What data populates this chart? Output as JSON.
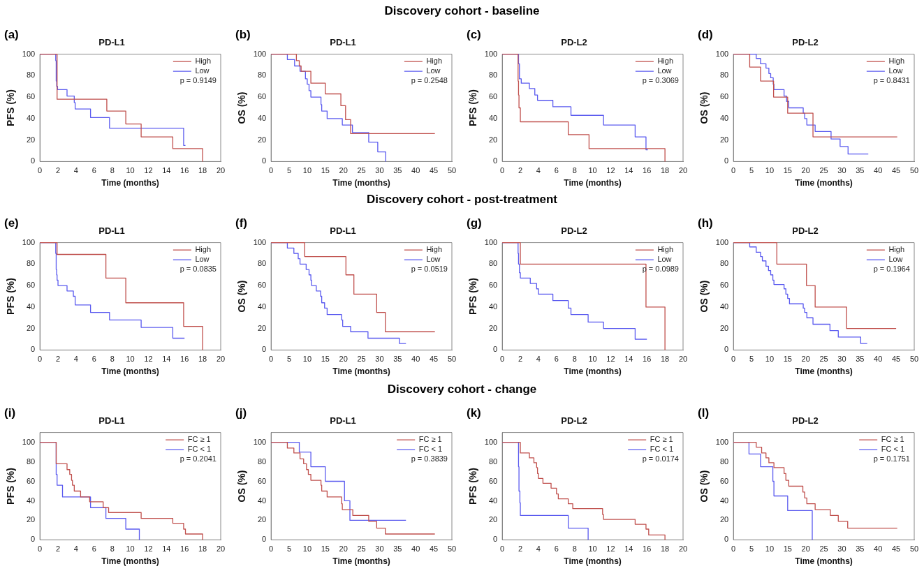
{
  "chart_data": [
    {
      "type": "step",
      "title": "PD-L1",
      "xlabel": "Time (months)",
      "ylabel": "PFS (%)",
      "annotations": [
        "Discovery cohort - baseline",
        "(a)",
        "p = 0.9149"
      ],
      "legend": "top right",
      "grid": false,
      "xlim": [
        0,
        20
      ],
      "xticks": [
        0,
        2,
        4,
        6,
        8,
        10,
        12,
        14,
        16,
        18,
        20
      ],
      "ylim": [
        0,
        100
      ],
      "yticks": [
        0,
        20,
        40,
        60,
        80,
        100
      ],
      "series": [
        {
          "name": "High",
          "color": "#c0504d",
          "x": [
            0,
            1.9,
            7.4,
            9.5,
            11.2,
            14.7,
            18
          ],
          "values": [
            100,
            58,
            47,
            35,
            23,
            12,
            0
          ]
        },
        {
          "name": "Low",
          "color": "#5b5bef",
          "x": [
            0,
            1.75,
            1.8,
            1.85,
            1.95,
            3,
            3.8,
            3.9,
            5.6,
            7.7,
            15.9,
            16.1
          ],
          "values": [
            100,
            94,
            75,
            70,
            67,
            61,
            55,
            49,
            41,
            31,
            15,
            15
          ]
        }
      ]
    },
    {
      "type": "step",
      "title": "PD-L1",
      "xlabel": "Time (months)",
      "ylabel": "OS (%)",
      "annotations": [
        "(b)",
        "p = 0.2548"
      ],
      "legend": "top right",
      "grid": false,
      "xlim": [
        0,
        50
      ],
      "xticks": [
        0,
        5,
        10,
        15,
        20,
        25,
        30,
        35,
        40,
        45,
        50
      ],
      "ylim": [
        0,
        100
      ],
      "yticks": [
        0,
        20,
        40,
        60,
        80,
        100
      ],
      "series": [
        {
          "name": "High",
          "color": "#c0504d",
          "x": [
            0,
            7,
            7.8,
            8.3,
            11,
            15,
            19.3,
            20.6,
            22,
            45.3
          ],
          "values": [
            100,
            94,
            89,
            84,
            73,
            63,
            52,
            39,
            26,
            26
          ]
        },
        {
          "name": "Low",
          "color": "#5b5bef",
          "x": [
            0,
            4.5,
            6.5,
            8,
            9.5,
            10,
            10.5,
            11,
            13.8,
            14,
            15.5,
            19.7,
            22.5,
            27,
            29.5,
            31.7
          ],
          "values": [
            100,
            95,
            89,
            84,
            77,
            72,
            66,
            60,
            53,
            47,
            40,
            34,
            27,
            18,
            9,
            0
          ]
        }
      ]
    },
    {
      "type": "step",
      "title": "PD-L2",
      "xlabel": "Time (months)",
      "ylabel": "PFS (%)",
      "annotations": [
        "(c)",
        "p = 0.3069"
      ],
      "legend": "top right",
      "grid": false,
      "xlim": [
        0,
        20
      ],
      "xticks": [
        0,
        2,
        4,
        6,
        8,
        10,
        12,
        14,
        16,
        18,
        20
      ],
      "ylim": [
        0,
        100
      ],
      "yticks": [
        0,
        20,
        40,
        60,
        80,
        100
      ],
      "series": [
        {
          "name": "High",
          "color": "#c0504d",
          "x": [
            0,
            1.75,
            1.8,
            1.85,
            2,
            7.3,
            9.6,
            18
          ],
          "values": [
            100,
            75,
            62,
            50,
            37,
            25,
            12,
            0
          ]
        },
        {
          "name": "Low",
          "color": "#5b5bef",
          "x": [
            0,
            1.8,
            1.9,
            2.1,
            3,
            3.6,
            3.9,
            5.6,
            7.6,
            11.2,
            14.7,
            15.9,
            16.1
          ],
          "values": [
            100,
            91,
            77,
            73,
            68,
            62,
            57,
            51,
            43,
            34,
            23,
            11,
            11
          ]
        }
      ]
    },
    {
      "type": "step",
      "title": "PD-L2",
      "xlabel": "Time (months)",
      "ylabel": "OS (%)",
      "annotations": [
        "(d)",
        "p = 0.8431"
      ],
      "legend": "top right",
      "grid": false,
      "xlim": [
        0,
        50
      ],
      "xticks": [
        0,
        5,
        10,
        15,
        20,
        25,
        30,
        35,
        40,
        45,
        50
      ],
      "ylim": [
        0,
        100
      ],
      "yticks": [
        0,
        20,
        40,
        60,
        80,
        100
      ],
      "series": [
        {
          "name": "High",
          "color": "#c0504d",
          "x": [
            0,
            4.5,
            7.5,
            11.1,
            15,
            22,
            45.3
          ],
          "values": [
            100,
            88,
            75,
            60,
            45,
            23,
            23
          ]
        },
        {
          "name": "Low",
          "color": "#5b5bef",
          "x": [
            0,
            6.3,
            7.5,
            9,
            9.8,
            10.3,
            11,
            11.2,
            14,
            14.7,
            15.3,
            19.3,
            19.7,
            20.3,
            22.6,
            27,
            29.5,
            31.7,
            37.3
          ],
          "values": [
            100,
            96,
            91,
            87,
            82,
            78,
            72,
            67,
            61,
            56,
            50,
            45,
            40,
            34,
            28,
            21,
            14,
            7,
            7
          ]
        }
      ]
    },
    {
      "type": "step",
      "title": "PD-L1",
      "xlabel": "Time (months)",
      "ylabel": "PFS (%)",
      "annotations": [
        "Discovery cohort - post-treatment",
        "(e)",
        "p = 0.0835"
      ],
      "legend": "top right",
      "grid": false,
      "xlim": [
        0,
        20
      ],
      "xticks": [
        0,
        2,
        4,
        6,
        8,
        10,
        12,
        14,
        16,
        18,
        20
      ],
      "ylim": [
        0,
        100
      ],
      "yticks": [
        0,
        20,
        40,
        60,
        80,
        100
      ],
      "series": [
        {
          "name": "High",
          "color": "#c0504d",
          "x": [
            0,
            1.9,
            7.3,
            9.5,
            15.9,
            18
          ],
          "values": [
            100,
            89,
            67,
            44,
            22,
            0
          ]
        },
        {
          "name": "Low",
          "color": "#5b5bef",
          "x": [
            0,
            1.75,
            1.8,
            1.85,
            1.9,
            2,
            3,
            3.7,
            3.9,
            5.6,
            7.7,
            11.2,
            14.7,
            16
          ],
          "values": [
            100,
            90,
            75,
            70,
            65,
            60,
            55,
            50,
            42,
            35,
            28,
            21,
            11,
            11
          ]
        }
      ]
    },
    {
      "type": "step",
      "title": "PD-L1",
      "xlabel": "Time (months)",
      "ylabel": "OS (%)",
      "annotations": [
        "(f)",
        "p = 0.0519"
      ],
      "legend": "top right",
      "grid": false,
      "xlim": [
        0,
        50
      ],
      "xticks": [
        0,
        5,
        10,
        15,
        20,
        25,
        30,
        35,
        40,
        45,
        50
      ],
      "ylim": [
        0,
        100
      ],
      "yticks": [
        0,
        20,
        40,
        60,
        80,
        100
      ],
      "series": [
        {
          "name": "High",
          "color": "#c0504d",
          "x": [
            0,
            9.3,
            20.7,
            22.9,
            29.2,
            31.6,
            45.3
          ],
          "values": [
            100,
            87,
            70,
            52,
            35,
            17,
            17
          ]
        },
        {
          "name": "Low",
          "color": "#5b5bef",
          "x": [
            0,
            4.5,
            6.3,
            7.5,
            8,
            9.7,
            10.5,
            11,
            11.2,
            12.5,
            13.7,
            14,
            14.8,
            15.5,
            19.5,
            19.8,
            22,
            26.8,
            35.5,
            37.3
          ],
          "values": [
            100,
            95,
            90,
            85,
            80,
            75,
            70,
            65,
            60,
            55,
            50,
            44,
            39,
            33,
            28,
            22,
            17,
            11,
            6,
            6
          ]
        }
      ]
    },
    {
      "type": "step",
      "title": "PD-L2",
      "xlabel": "Time (months)",
      "ylabel": "PFS (%)",
      "annotations": [
        "(g)",
        "p = 0.0989"
      ],
      "legend": "top right",
      "grid": false,
      "xlim": [
        0,
        20
      ],
      "xticks": [
        0,
        2,
        4,
        6,
        8,
        10,
        12,
        14,
        16,
        18,
        20
      ],
      "ylim": [
        0,
        100
      ],
      "yticks": [
        0,
        20,
        40,
        60,
        80,
        100
      ],
      "series": [
        {
          "name": "High",
          "color": "#c0504d",
          "x": [
            0,
            2,
            15.9,
            18
          ],
          "values": [
            100,
            80,
            40,
            0
          ]
        },
        {
          "name": "Low",
          "color": "#5b5bef",
          "x": [
            0,
            1.75,
            1.8,
            1.9,
            2,
            3.1,
            3.8,
            4,
            5.6,
            7.3,
            7.6,
            9.5,
            11.2,
            14.7,
            16
          ],
          "values": [
            100,
            90,
            80,
            72,
            67,
            62,
            57,
            52,
            46,
            39,
            33,
            26,
            20,
            10,
            10
          ]
        }
      ]
    },
    {
      "type": "step",
      "title": "PD-L2",
      "xlabel": "Time (months)",
      "ylabel": "OS (%)",
      "annotations": [
        "(h)",
        "p = 0.1964"
      ],
      "legend": "top right",
      "grid": false,
      "xlim": [
        0,
        50
      ],
      "xticks": [
        0,
        5,
        10,
        15,
        20,
        25,
        30,
        35,
        40,
        45,
        50
      ],
      "ylim": [
        0,
        100
      ],
      "yticks": [
        0,
        20,
        40,
        60,
        80,
        100
      ],
      "series": [
        {
          "name": "High",
          "color": "#c0504d",
          "x": [
            0,
            12,
            20.2,
            22.6,
            31.3,
            45
          ],
          "values": [
            100,
            80,
            60,
            40,
            20,
            20
          ]
        },
        {
          "name": "Low",
          "color": "#5b5bef",
          "x": [
            0,
            4.5,
            6.3,
            7.5,
            8,
            9,
            9.7,
            10.3,
            10.9,
            11.2,
            14,
            14.5,
            15,
            15.5,
            19.3,
            19.7,
            20.3,
            22,
            26.7,
            29,
            35.2,
            37
          ],
          "values": [
            100,
            96,
            91,
            87,
            83,
            78,
            74,
            70,
            65,
            61,
            57,
            52,
            48,
            43,
            39,
            35,
            30,
            24,
            18,
            12,
            6,
            6
          ]
        }
      ]
    },
    {
      "type": "step",
      "title": "PD-L1",
      "xlabel": "Time (months)",
      "ylabel": "PFS (%)",
      "annotations": [
        "Discovery cohort - change",
        "(i)",
        "p = 0.2041"
      ],
      "legend": "top right",
      "grid": false,
      "xlim": [
        0,
        20
      ],
      "xticks": [
        0,
        2,
        4,
        6,
        8,
        10,
        12,
        14,
        16,
        18,
        20
      ],
      "ylim": [
        0,
        110
      ],
      "yticks": [
        0,
        20,
        40,
        60,
        80,
        100
      ],
      "series": [
        {
          "name": "FC ≥ 1",
          "color": "#c0504d",
          "x": [
            0,
            1.8,
            3,
            3.3,
            3.5,
            3.6,
            3.8,
            4.5,
            5.5,
            7,
            7.6,
            11.2,
            14.7,
            15.9,
            16.1,
            18
          ],
          "values": [
            100,
            78,
            72,
            67,
            61,
            56,
            50,
            44,
            39,
            33,
            28,
            22,
            17,
            11,
            6,
            0
          ]
        },
        {
          "name": "FC < 1",
          "color": "#5b5bef",
          "x": [
            0,
            1.8,
            1.9,
            2.5,
            5.6,
            7.3,
            9.5,
            11
          ],
          "values": [
            100,
            67,
            56,
            44,
            33,
            22,
            11,
            0
          ]
        }
      ]
    },
    {
      "type": "step",
      "title": "PD-L1",
      "xlabel": "Time (months)",
      "ylabel": "OS (%)",
      "annotations": [
        "(j)",
        "p = 0.3839"
      ],
      "legend": "top right",
      "grid": false,
      "xlim": [
        0,
        50
      ],
      "xticks": [
        0,
        5,
        10,
        15,
        20,
        25,
        30,
        35,
        40,
        45,
        50
      ],
      "ylim": [
        0,
        110
      ],
      "yticks": [
        0,
        20,
        40,
        60,
        80,
        100
      ],
      "series": [
        {
          "name": "FC ≥ 1",
          "color": "#c0504d",
          "x": [
            0,
            4.5,
            6.3,
            8,
            9,
            9.8,
            10.3,
            11,
            13.8,
            14,
            15.5,
            19.5,
            19.7,
            22.6,
            27,
            29.2,
            31.6,
            45.3
          ],
          "values": [
            100,
            94,
            89,
            83,
            78,
            72,
            67,
            61,
            56,
            50,
            44,
            37,
            31,
            25,
            19,
            12,
            6,
            6
          ]
        },
        {
          "name": "FC < 1",
          "color": "#5b5bef",
          "x": [
            0,
            7.8,
            11,
            15,
            20.3,
            21.8,
            37.3
          ],
          "values": [
            100,
            90,
            75,
            60,
            40,
            20,
            20
          ]
        }
      ]
    },
    {
      "type": "step",
      "title": "PD-L2",
      "xlabel": "Time (months)",
      "ylabel": "PFS (%)",
      "annotations": [
        "(k)",
        "p = 0.0174"
      ],
      "legend": "top right",
      "grid": false,
      "xlim": [
        0,
        20
      ],
      "xticks": [
        0,
        2,
        4,
        6,
        8,
        10,
        12,
        14,
        16,
        18,
        20
      ],
      "ylim": [
        0,
        110
      ],
      "yticks": [
        0,
        20,
        40,
        60,
        80,
        100
      ],
      "series": [
        {
          "name": "FC ≥ 1",
          "color": "#c0504d",
          "x": [
            0,
            2,
            3,
            3.5,
            3.8,
            3.9,
            4,
            4.5,
            5.4,
            6,
            6.2,
            7.3,
            7.8,
            11.1,
            11.2,
            14.7,
            15.9,
            16.2,
            18
          ],
          "values": [
            100,
            89,
            84,
            79,
            74,
            68,
            63,
            58,
            53,
            47,
            42,
            37,
            32,
            26,
            21,
            16,
            11,
            5,
            0
          ]
        },
        {
          "name": "FC < 1",
          "color": "#5b5bef",
          "x": [
            0,
            1.8,
            1.85,
            1.95,
            2,
            7.3,
            9.5
          ],
          "values": [
            100,
            75,
            50,
            38,
            25,
            12,
            0
          ]
        }
      ]
    },
    {
      "type": "step",
      "title": "PD-L2",
      "xlabel": "Time (months)",
      "ylabel": "OS (%)",
      "annotations": [
        "(l)",
        "p = 0.1751"
      ],
      "legend": "top right",
      "grid": false,
      "xlim": [
        0,
        50
      ],
      "xticks": [
        0,
        5,
        10,
        15,
        20,
        25,
        30,
        35,
        40,
        45,
        50
      ],
      "ylim": [
        0,
        110
      ],
      "yticks": [
        0,
        20,
        40,
        60,
        80,
        100
      ],
      "series": [
        {
          "name": "FC ≥ 1",
          "color": "#c0504d",
          "x": [
            0,
            6.3,
            7.8,
            9,
            9.8,
            11.2,
            14,
            14.5,
            15.3,
            19.2,
            19.7,
            20.3,
            22.6,
            26.8,
            29,
            31.6,
            45.3
          ],
          "values": [
            100,
            95,
            89,
            84,
            79,
            74,
            68,
            61,
            55,
            49,
            43,
            37,
            31,
            25,
            19,
            12,
            12
          ]
        },
        {
          "name": "FC < 1",
          "color": "#5b5bef",
          "x": [
            0,
            4.3,
            7.5,
            10.9,
            11.2,
            15,
            21.8
          ],
          "values": [
            100,
            88,
            75,
            60,
            45,
            30,
            0
          ]
        }
      ]
    }
  ]
}
